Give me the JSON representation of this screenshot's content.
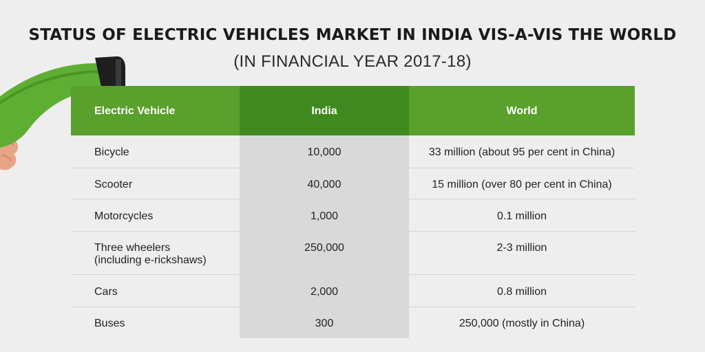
{
  "title": "STATUS OF ELECTRIC VEHICLES MARKET IN INDIA VIS-A-VIS THE WORLD",
  "subtitle": "(IN FINANCIAL YEAR 2017-18)",
  "colors": {
    "header_green": "#5aa02c",
    "header_dark_green": "#3f8a1e",
    "india_column": "#d9d9d9",
    "background": "#eeeeee"
  },
  "table": {
    "headers": [
      "Electric Vehicle",
      "India",
      "World"
    ],
    "rows": [
      {
        "vehicle": "Bicycle",
        "india": "10,000",
        "world": "33 million (about 95 per cent in China)"
      },
      {
        "vehicle": "Scooter",
        "india": "40,000",
        "world": "15 million (over 80 per cent in China)"
      },
      {
        "vehicle": "Motorcycles",
        "india": "1,000",
        "world": "0.1 million"
      },
      {
        "vehicle": "Three wheelers",
        "vehicle_line2": "(including e-rickshaws)",
        "india": "250,000",
        "world": "2-3 million"
      },
      {
        "vehicle": "Cars",
        "india": "2,000",
        "world": "0.8 million"
      },
      {
        "vehicle": "Buses",
        "india": "300",
        "world": "250,000 (mostly in China)"
      }
    ]
  },
  "illustration": "ev-charger-plug-in-hand"
}
